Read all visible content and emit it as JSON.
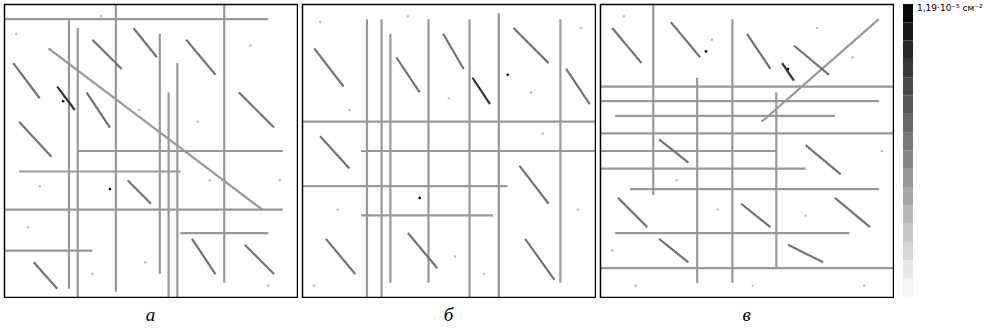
{
  "chart_data": [
    {
      "type": "segments",
      "label": "а",
      "xlim": [
        0,
        100
      ],
      "ylim": [
        0,
        100
      ],
      "tick_labels": false,
      "segments": [
        {
          "x1": 22,
          "y1": 5,
          "x2": 22,
          "y2": 97,
          "value": 4.8e-06
        },
        {
          "x1": 25,
          "y1": 8,
          "x2": 25,
          "y2": 100,
          "value": 4.8e-06
        },
        {
          "x1": 38,
          "y1": 0,
          "x2": 38,
          "y2": 98,
          "value": 4.8e-06
        },
        {
          "x1": 53,
          "y1": 10,
          "x2": 53,
          "y2": 92,
          "value": 4.8e-06
        },
        {
          "x1": 56,
          "y1": 30,
          "x2": 56,
          "y2": 100,
          "value": 4.8e-06
        },
        {
          "x1": 59,
          "y1": 20,
          "x2": 59,
          "y2": 100,
          "value": 4.8e-06
        },
        {
          "x1": 75,
          "y1": 0,
          "x2": 75,
          "y2": 95,
          "value": 4.8e-06
        },
        {
          "x1": 0,
          "y1": 5,
          "x2": 90,
          "y2": 5,
          "value": 4.8e-06
        },
        {
          "x1": 25,
          "y1": 50,
          "x2": 95,
          "y2": 50,
          "value": 4.8e-06
        },
        {
          "x1": 5,
          "y1": 57,
          "x2": 60,
          "y2": 57,
          "value": 4.8e-06
        },
        {
          "x1": 0,
          "y1": 70,
          "x2": 95,
          "y2": 70,
          "value": 4.8e-06
        },
        {
          "x1": 60,
          "y1": 78,
          "x2": 90,
          "y2": 78,
          "value": 4.8e-06
        },
        {
          "x1": 0,
          "y1": 84,
          "x2": 30,
          "y2": 84,
          "value": 4.8e-06
        },
        {
          "x1": 15,
          "y1": 15,
          "x2": 88,
          "y2": 70,
          "value": 4.8e-06
        },
        {
          "x1": 3,
          "y1": 20,
          "x2": 12,
          "y2": 32,
          "value": 6.5e-06
        },
        {
          "x1": 30,
          "y1": 12,
          "x2": 40,
          "y2": 22,
          "value": 6.5e-06
        },
        {
          "x1": 44,
          "y1": 8,
          "x2": 52,
          "y2": 18,
          "value": 6.5e-06
        },
        {
          "x1": 62,
          "y1": 12,
          "x2": 72,
          "y2": 24,
          "value": 6.5e-06
        },
        {
          "x1": 80,
          "y1": 30,
          "x2": 92,
          "y2": 42,
          "value": 6.5e-06
        },
        {
          "x1": 5,
          "y1": 40,
          "x2": 16,
          "y2": 52,
          "value": 6.5e-06
        },
        {
          "x1": 28,
          "y1": 30,
          "x2": 36,
          "y2": 42,
          "value": 6.5e-06
        },
        {
          "x1": 42,
          "y1": 60,
          "x2": 50,
          "y2": 68,
          "value": 6.5e-06
        },
        {
          "x1": 64,
          "y1": 80,
          "x2": 72,
          "y2": 92,
          "value": 6.5e-06
        },
        {
          "x1": 10,
          "y1": 88,
          "x2": 18,
          "y2": 97,
          "value": 6.5e-06
        },
        {
          "x1": 82,
          "y1": 82,
          "x2": 92,
          "y2": 92,
          "value": 6.5e-06
        },
        {
          "x1": 18,
          "y1": 28,
          "x2": 24,
          "y2": 36,
          "value": 9.5e-06
        }
      ],
      "dots": [
        {
          "x": 4,
          "y": 10,
          "value": 3e-06
        },
        {
          "x": 12,
          "y": 62,
          "value": 3e-06
        },
        {
          "x": 33,
          "y": 4,
          "value": 3e-06
        },
        {
          "x": 46,
          "y": 36,
          "value": 3e-06
        },
        {
          "x": 66,
          "y": 40,
          "value": 3e-06
        },
        {
          "x": 84,
          "y": 14,
          "value": 3e-06
        },
        {
          "x": 94,
          "y": 60,
          "value": 3e-06
        },
        {
          "x": 48,
          "y": 88,
          "value": 3e-06
        },
        {
          "x": 30,
          "y": 92,
          "value": 3e-06
        },
        {
          "x": 70,
          "y": 60,
          "value": 3e-06
        },
        {
          "x": 8,
          "y": 76,
          "value": 3e-06
        },
        {
          "x": 90,
          "y": 96,
          "value": 3e-06
        },
        {
          "x": 20,
          "y": 33,
          "value": 1.19e-05
        },
        {
          "x": 36,
          "y": 63,
          "value": 1.19e-05
        }
      ]
    },
    {
      "type": "segments",
      "label": "б",
      "xlim": [
        0,
        100
      ],
      "ylim": [
        0,
        100
      ],
      "tick_labels": false,
      "segments": [
        {
          "x1": 22,
          "y1": 5,
          "x2": 22,
          "y2": 100,
          "value": 4.8e-06
        },
        {
          "x1": 27,
          "y1": 5,
          "x2": 27,
          "y2": 100,
          "value": 4.8e-06
        },
        {
          "x1": 30,
          "y1": 10,
          "x2": 30,
          "y2": 95,
          "value": 4.8e-06
        },
        {
          "x1": 43,
          "y1": 5,
          "x2": 43,
          "y2": 95,
          "value": 4.8e-06
        },
        {
          "x1": 57,
          "y1": 5,
          "x2": 57,
          "y2": 100,
          "value": 4.8e-06
        },
        {
          "x1": 67,
          "y1": 3,
          "x2": 67,
          "y2": 100,
          "value": 4.8e-06
        },
        {
          "x1": 88,
          "y1": 5,
          "x2": 88,
          "y2": 95,
          "value": 4.8e-06
        },
        {
          "x1": 0,
          "y1": 40,
          "x2": 100,
          "y2": 40,
          "value": 4.8e-06
        },
        {
          "x1": 20,
          "y1": 50,
          "x2": 100,
          "y2": 50,
          "value": 4.8e-06
        },
        {
          "x1": 0,
          "y1": 62,
          "x2": 70,
          "y2": 62,
          "value": 4.8e-06
        },
        {
          "x1": 20,
          "y1": 72,
          "x2": 65,
          "y2": 72,
          "value": 4.8e-06
        },
        {
          "x1": 4,
          "y1": 15,
          "x2": 14,
          "y2": 28,
          "value": 6.5e-06
        },
        {
          "x1": 32,
          "y1": 18,
          "x2": 40,
          "y2": 30,
          "value": 6.5e-06
        },
        {
          "x1": 48,
          "y1": 10,
          "x2": 55,
          "y2": 22,
          "value": 6.5e-06
        },
        {
          "x1": 72,
          "y1": 8,
          "x2": 84,
          "y2": 20,
          "value": 6.5e-06
        },
        {
          "x1": 90,
          "y1": 22,
          "x2": 98,
          "y2": 34,
          "value": 6.5e-06
        },
        {
          "x1": 6,
          "y1": 45,
          "x2": 16,
          "y2": 56,
          "value": 6.5e-06
        },
        {
          "x1": 74,
          "y1": 55,
          "x2": 84,
          "y2": 68,
          "value": 6.5e-06
        },
        {
          "x1": 36,
          "y1": 78,
          "x2": 46,
          "y2": 90,
          "value": 6.5e-06
        },
        {
          "x1": 8,
          "y1": 80,
          "x2": 18,
          "y2": 92,
          "value": 6.5e-06
        },
        {
          "x1": 76,
          "y1": 80,
          "x2": 86,
          "y2": 94,
          "value": 6.5e-06
        },
        {
          "x1": 58,
          "y1": 25,
          "x2": 64,
          "y2": 34,
          "value": 9.5e-06
        }
      ],
      "dots": [
        {
          "x": 6,
          "y": 6,
          "value": 3e-06
        },
        {
          "x": 16,
          "y": 36,
          "value": 3e-06
        },
        {
          "x": 36,
          "y": 4,
          "value": 3e-06
        },
        {
          "x": 50,
          "y": 32,
          "value": 3e-06
        },
        {
          "x": 78,
          "y": 30,
          "value": 3e-06
        },
        {
          "x": 95,
          "y": 8,
          "value": 3e-06
        },
        {
          "x": 94,
          "y": 70,
          "value": 3e-06
        },
        {
          "x": 52,
          "y": 86,
          "value": 3e-06
        },
        {
          "x": 12,
          "y": 70,
          "value": 3e-06
        },
        {
          "x": 62,
          "y": 92,
          "value": 3e-06
        },
        {
          "x": 82,
          "y": 44,
          "value": 3e-06
        },
        {
          "x": 4,
          "y": 96,
          "value": 3e-06
        },
        {
          "x": 70,
          "y": 24,
          "value": 1.19e-05
        },
        {
          "x": 40,
          "y": 66,
          "value": 1.19e-05
        }
      ]
    },
    {
      "type": "segments",
      "label": "в",
      "xlim": [
        0,
        100
      ],
      "ylim": [
        0,
        100
      ],
      "tick_labels": false,
      "segments": [
        {
          "x1": 0,
          "y1": 28,
          "x2": 100,
          "y2": 28,
          "value": 4.8e-06
        },
        {
          "x1": 0,
          "y1": 33,
          "x2": 95,
          "y2": 33,
          "value": 4.8e-06
        },
        {
          "x1": 5,
          "y1": 38,
          "x2": 80,
          "y2": 38,
          "value": 4.8e-06
        },
        {
          "x1": 0,
          "y1": 44,
          "x2": 100,
          "y2": 44,
          "value": 4.8e-06
        },
        {
          "x1": 0,
          "y1": 50,
          "x2": 60,
          "y2": 50,
          "value": 4.8e-06
        },
        {
          "x1": 0,
          "y1": 56,
          "x2": 70,
          "y2": 56,
          "value": 4.8e-06
        },
        {
          "x1": 10,
          "y1": 63,
          "x2": 95,
          "y2": 63,
          "value": 4.8e-06
        },
        {
          "x1": 5,
          "y1": 78,
          "x2": 85,
          "y2": 78,
          "value": 4.8e-06
        },
        {
          "x1": 0,
          "y1": 90,
          "x2": 100,
          "y2": 90,
          "value": 4.8e-06
        },
        {
          "x1": 18,
          "y1": 0,
          "x2": 18,
          "y2": 65,
          "value": 4.8e-06
        },
        {
          "x1": 33,
          "y1": 25,
          "x2": 33,
          "y2": 95,
          "value": 4.8e-06
        },
        {
          "x1": 45,
          "y1": 5,
          "x2": 45,
          "y2": 95,
          "value": 4.8e-06
        },
        {
          "x1": 60,
          "y1": 30,
          "x2": 60,
          "y2": 90,
          "value": 4.8e-06
        },
        {
          "x1": 55,
          "y1": 40,
          "x2": 95,
          "y2": 5,
          "value": 4.8e-06
        },
        {
          "x1": 4,
          "y1": 8,
          "x2": 14,
          "y2": 20,
          "value": 6.5e-06
        },
        {
          "x1": 24,
          "y1": 6,
          "x2": 34,
          "y2": 18,
          "value": 6.5e-06
        },
        {
          "x1": 50,
          "y1": 10,
          "x2": 58,
          "y2": 22,
          "value": 6.5e-06
        },
        {
          "x1": 66,
          "y1": 14,
          "x2": 78,
          "y2": 24,
          "value": 6.5e-06
        },
        {
          "x1": 20,
          "y1": 46,
          "x2": 30,
          "y2": 54,
          "value": 6.5e-06
        },
        {
          "x1": 70,
          "y1": 48,
          "x2": 82,
          "y2": 58,
          "value": 6.5e-06
        },
        {
          "x1": 6,
          "y1": 66,
          "x2": 16,
          "y2": 76,
          "value": 6.5e-06
        },
        {
          "x1": 48,
          "y1": 68,
          "x2": 58,
          "y2": 76,
          "value": 6.5e-06
        },
        {
          "x1": 80,
          "y1": 66,
          "x2": 92,
          "y2": 76,
          "value": 6.5e-06
        },
        {
          "x1": 20,
          "y1": 80,
          "x2": 30,
          "y2": 88,
          "value": 6.5e-06
        },
        {
          "x1": 64,
          "y1": 82,
          "x2": 76,
          "y2": 88,
          "value": 6.5e-06
        },
        {
          "x1": 62,
          "y1": 20,
          "x2": 66,
          "y2": 26,
          "value": 9.5e-06
        }
      ],
      "dots": [
        {
          "x": 8,
          "y": 4,
          "value": 3e-06
        },
        {
          "x": 38,
          "y": 12,
          "value": 3e-06
        },
        {
          "x": 86,
          "y": 18,
          "value": 3e-06
        },
        {
          "x": 96,
          "y": 50,
          "value": 3e-06
        },
        {
          "x": 40,
          "y": 70,
          "value": 3e-06
        },
        {
          "x": 70,
          "y": 72,
          "value": 3e-06
        },
        {
          "x": 12,
          "y": 96,
          "value": 3e-06
        },
        {
          "x": 52,
          "y": 96,
          "value": 3e-06
        },
        {
          "x": 90,
          "y": 96,
          "value": 3e-06
        },
        {
          "x": 26,
          "y": 60,
          "value": 3e-06
        },
        {
          "x": 74,
          "y": 8,
          "value": 3e-06
        },
        {
          "x": 4,
          "y": 84,
          "value": 3e-06
        },
        {
          "x": 36,
          "y": 16,
          "value": 1.19e-05
        },
        {
          "x": 64,
          "y": 22,
          "value": 1.19e-05
        }
      ]
    }
  ],
  "colorbar": {
    "range": [
      0,
      1.19e-05
    ],
    "colors": [
      "#ffffff",
      "#000000"
    ],
    "ticks": [
      {
        "value": 1.19e-05,
        "label": "1,19·10⁻⁵ см⁻²"
      }
    ]
  }
}
